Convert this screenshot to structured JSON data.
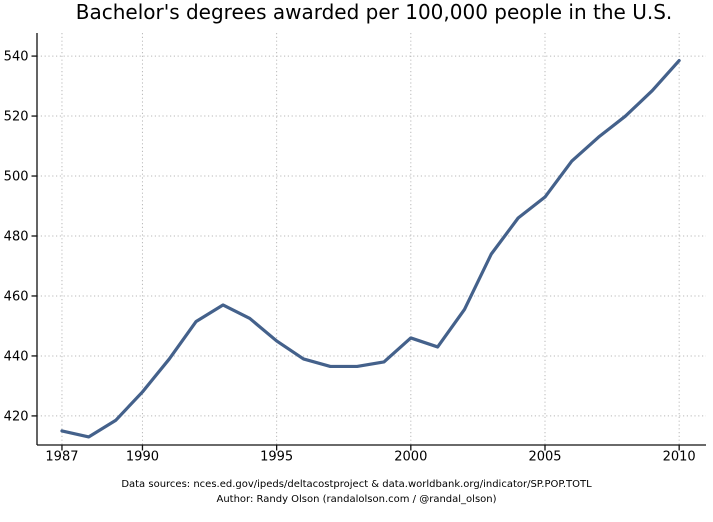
{
  "page": {
    "footer_line1": "Data sources: nces.ed.gov/ipeds/deltacostproject & data.worldbank.org/indicator/SP.POP.TOTL",
    "footer_line2": "Author: Randy Olson (randalolson.com / @randal_olson)"
  },
  "chart_data": {
    "type": "line",
    "title": "Bachelor's degrees awarded per 100,000 people in the U.S.",
    "xlabel": "",
    "ylabel": "",
    "x": [
      1987,
      1988,
      1989,
      1990,
      1991,
      1992,
      1993,
      1994,
      1995,
      1996,
      1997,
      1998,
      1999,
      2000,
      2001,
      2002,
      2003,
      2004,
      2005,
      2006,
      2007,
      2008,
      2009,
      2010
    ],
    "series": [
      {
        "name": "Bachelor's degrees awarded per 100,000 people",
        "values": [
          415,
          413,
          418.5,
          428,
          439,
          451.5,
          457,
          452.5,
          445,
          439,
          436.5,
          436.5,
          438,
          446,
          443,
          455.5,
          474,
          486,
          493,
          505,
          513,
          520,
          528.5,
          538.5
        ]
      }
    ],
    "x_ticks": [
      1987,
      1990,
      1995,
      2000,
      2005,
      2010
    ],
    "y_ticks": [
      420,
      440,
      460,
      480,
      500,
      520,
      540
    ],
    "xlim": [
      1986.07,
      2011.0
    ],
    "ylim": [
      410.3,
      547.7
    ],
    "grid": true,
    "grid_style": "dotted",
    "legend": "none",
    "line_color": "#44618b",
    "grid_color": "#b9b9b9",
    "axis_color": "#111111",
    "tick_label_color": "#000000"
  }
}
